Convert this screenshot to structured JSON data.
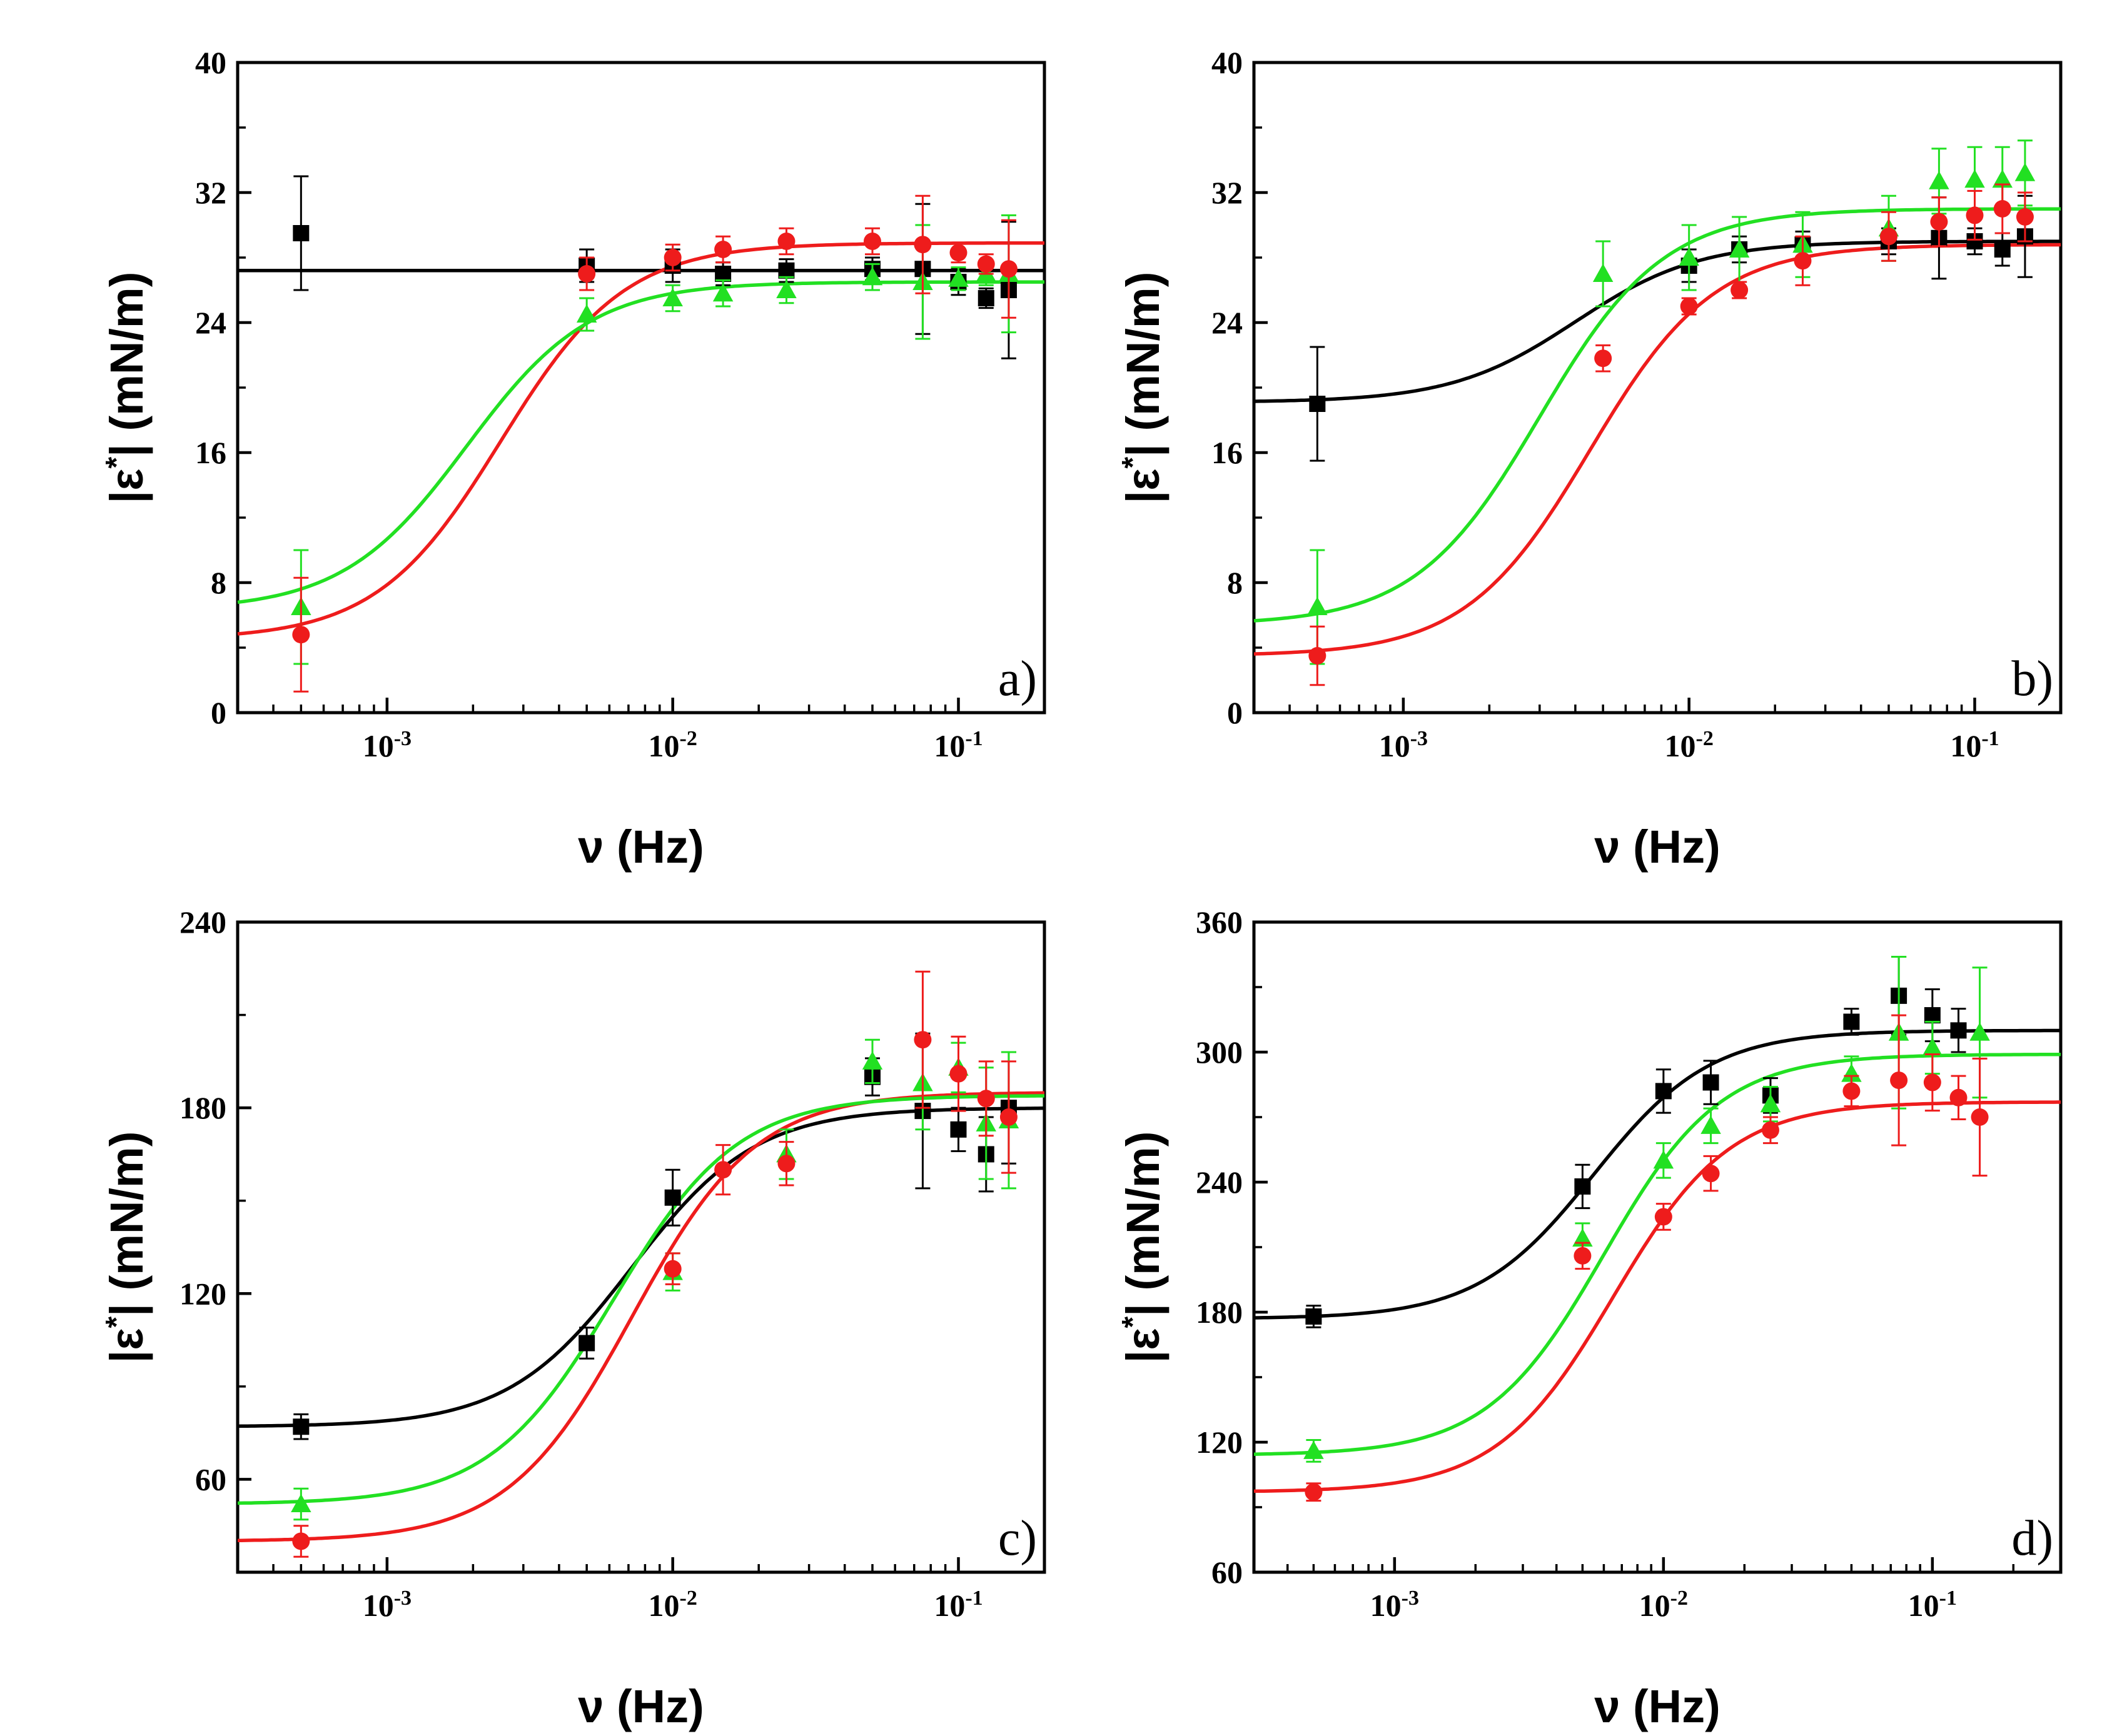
{
  "figure": {
    "xlabel": "ν (Hz)",
    "ylabel_main": "|ε",
    "ylabel_sup": "*",
    "ylabel_tail": "| (mN/m)"
  },
  "series_colors": {
    "black": "#000000",
    "red": "#ee1c1c",
    "green": "#22e022"
  },
  "chart_data": [
    {
      "type": "scatter",
      "panel": "a)",
      "xlabel": "ν (Hz)",
      "ylabel": "|ε*| (mN/m)",
      "xscale": "log",
      "xlim": [
        0.0003,
        0.2
      ],
      "ylim": [
        0,
        40
      ],
      "yticks": [
        0,
        8,
        16,
        24,
        32,
        40
      ],
      "xticks": [
        {
          "v": 0.001,
          "base": "10",
          "exp": "-3"
        },
        {
          "v": 0.01,
          "base": "10",
          "exp": "-2"
        },
        {
          "v": 0.1,
          "base": "10",
          "exp": "-1"
        }
      ],
      "series": [
        {
          "name": "black",
          "marker": "square",
          "x": [
            0.0005,
            0.005,
            0.01,
            0.015,
            0.025,
            0.05,
            0.075,
            0.1,
            0.125,
            0.15
          ],
          "y": [
            29.5,
            27.5,
            27.5,
            27,
            27.2,
            27.3,
            27.3,
            26.5,
            25.5,
            26
          ],
          "err": [
            3.5,
            1,
            1,
            0.7,
            0.7,
            0.7,
            4,
            0.8,
            0.6,
            4.2
          ],
          "fit": {
            "low": 27.2,
            "high": 27.2,
            "fc": 0.003
          }
        },
        {
          "name": "red",
          "marker": "circle",
          "x": [
            0.0005,
            0.005,
            0.01,
            0.015,
            0.025,
            0.05,
            0.075,
            0.1,
            0.125,
            0.15
          ],
          "y": [
            4.8,
            27,
            28,
            28.5,
            29,
            29,
            28.8,
            28.3,
            27.6,
            27.3
          ],
          "err": [
            3.5,
            1,
            0.8,
            0.8,
            0.8,
            0.8,
            3,
            0.6,
            0.6,
            3
          ],
          "fit": {
            "low": 4.5,
            "high": 28.9,
            "fc": 0.0025
          }
        },
        {
          "name": "green",
          "marker": "triangle",
          "x": [
            0.0005,
            0.005,
            0.01,
            0.015,
            0.025,
            0.05,
            0.075,
            0.1,
            0.125,
            0.15
          ],
          "y": [
            6.5,
            24.5,
            25.5,
            25.8,
            26,
            26.8,
            26.5,
            26.7,
            27,
            27
          ],
          "err": [
            3.5,
            1,
            0.8,
            0.8,
            0.8,
            0.8,
            3.5,
            0.7,
            0.7,
            3.6
          ],
          "fit": {
            "low": 6.3,
            "high": 26.5,
            "fc": 0.0019
          }
        }
      ]
    },
    {
      "type": "scatter",
      "panel": "b)",
      "xlabel": "ν (Hz)",
      "ylabel": "|ε*| (mN/m)",
      "xscale": "log",
      "xlim": [
        0.0003,
        0.2
      ],
      "ylim": [
        0,
        40
      ],
      "yticks": [
        0,
        8,
        16,
        24,
        32,
        40
      ],
      "xticks": [
        {
          "v": 0.001,
          "base": "10",
          "exp": "-3"
        },
        {
          "v": 0.01,
          "base": "10",
          "exp": "-2"
        },
        {
          "v": 0.1,
          "base": "10",
          "exp": "-1"
        }
      ],
      "series": [
        {
          "name": "black",
          "marker": "square",
          "x": [
            0.0005,
            0.01,
            0.015,
            0.025,
            0.05,
            0.075,
            0.1,
            0.125,
            0.15
          ],
          "y": [
            19,
            27.5,
            28.5,
            28.8,
            29,
            29.2,
            29,
            28.5,
            29.3
          ],
          "err": [
            3.5,
            1,
            0.8,
            0.8,
            0.8,
            2.5,
            0.8,
            1,
            2.5
          ],
          "fit": {
            "low": 19.1,
            "high": 29,
            "fc": 0.004
          }
        },
        {
          "name": "red",
          "marker": "circle",
          "x": [
            0.0005,
            0.005,
            0.01,
            0.015,
            0.025,
            0.05,
            0.075,
            0.1,
            0.125,
            0.15
          ],
          "y": [
            3.5,
            21.8,
            25,
            26,
            27.8,
            29.3,
            30.2,
            30.6,
            31,
            30.5
          ],
          "err": [
            1.8,
            0.8,
            0.5,
            0.5,
            1.5,
            1.5,
            1.5,
            1.5,
            1.5,
            1.5
          ],
          "fit": {
            "low": 3.5,
            "high": 28.8,
            "fc": 0.0045
          }
        },
        {
          "name": "green",
          "marker": "triangle",
          "x": [
            0.0005,
            0.005,
            0.01,
            0.015,
            0.025,
            0.05,
            0.075,
            0.1,
            0.125,
            0.15
          ],
          "y": [
            6.5,
            27,
            28,
            28.5,
            28.8,
            29.8,
            32.7,
            32.8,
            32.8,
            33.2
          ],
          "err": [
            3.5,
            2,
            2,
            2,
            2,
            2,
            2,
            2,
            2,
            2
          ],
          "fit": {
            "low": 5.4,
            "high": 31,
            "fc": 0.003
          }
        }
      ]
    },
    {
      "type": "scatter",
      "panel": "c)",
      "xlabel": "ν (Hz)",
      "ylabel": "|ε*| (mN/m)",
      "xscale": "log",
      "xlim": [
        0.0003,
        0.2
      ],
      "ylim": [
        30,
        240
      ],
      "yticks": [
        60,
        120,
        180,
        240
      ],
      "xticks": [
        {
          "v": 0.001,
          "base": "10",
          "exp": "-3"
        },
        {
          "v": 0.01,
          "base": "10",
          "exp": "-2"
        },
        {
          "v": 0.1,
          "base": "10",
          "exp": "-1"
        }
      ],
      "series": [
        {
          "name": "black",
          "marker": "square",
          "x": [
            0.0005,
            0.005,
            0.01,
            0.05,
            0.075,
            0.1,
            0.125,
            0.15
          ],
          "y": [
            77,
            104,
            151,
            190,
            179,
            173,
            165,
            180
          ],
          "err": [
            4,
            5,
            9,
            6,
            25,
            7,
            12,
            18
          ],
          "fit": {
            "low": 77,
            "high": 180,
            "fc": 0.0072
          }
        },
        {
          "name": "red",
          "marker": "circle",
          "x": [
            0.0005,
            0.01,
            0.015,
            0.025,
            0.075,
            0.1,
            0.125,
            0.15
          ],
          "y": [
            40,
            128,
            160,
            162,
            202,
            191,
            183,
            177
          ],
          "err": [
            5,
            5,
            8,
            7,
            22,
            12,
            12,
            18
          ],
          "fit": {
            "low": 40,
            "high": 185,
            "fc": 0.0072
          }
        },
        {
          "name": "green",
          "marker": "triangle",
          "x": [
            0.0005,
            0.01,
            0.025,
            0.05,
            0.075,
            0.1,
            0.125,
            0.15
          ],
          "y": [
            52,
            127,
            165,
            195,
            188,
            193,
            175,
            176
          ],
          "err": [
            5,
            6,
            8,
            7,
            15,
            8,
            18,
            22
          ],
          "fit": {
            "low": 52,
            "high": 184,
            "fc": 0.0062
          }
        }
      ]
    },
    {
      "type": "scatter",
      "panel": "d)",
      "xlabel": "ν (Hz)",
      "ylabel": "|ε*| (mN/m)",
      "xscale": "log",
      "xlim": [
        0.0003,
        0.3
      ],
      "ylim": [
        60,
        360
      ],
      "yticks": [
        60,
        120,
        180,
        240,
        300,
        360
      ],
      "xticks": [
        {
          "v": 0.001,
          "base": "10",
          "exp": "-3"
        },
        {
          "v": 0.01,
          "base": "10",
          "exp": "-2"
        },
        {
          "v": 0.1,
          "base": "10",
          "exp": "-1"
        }
      ],
      "series": [
        {
          "name": "black",
          "marker": "square",
          "x": [
            0.0005,
            0.005,
            0.01,
            0.015,
            0.025,
            0.05,
            0.075,
            0.1,
            0.125
          ],
          "y": [
            178,
            238,
            282,
            286,
            280,
            314,
            326,
            317,
            310
          ],
          "err": [
            5,
            10,
            10,
            10,
            8,
            6,
            18,
            12,
            10
          ],
          "fit": {
            "low": 177,
            "high": 310,
            "fc": 0.0055
          }
        },
        {
          "name": "red",
          "marker": "circle",
          "x": [
            0.0005,
            0.005,
            0.01,
            0.015,
            0.025,
            0.05,
            0.075,
            0.1,
            0.125,
            0.15
          ],
          "y": [
            97,
            206,
            224,
            244,
            264,
            282,
            287,
            286,
            279,
            270
          ],
          "err": [
            4,
            6,
            6,
            8,
            6,
            7,
            30,
            13,
            10,
            27
          ],
          "fit": {
            "low": 97,
            "high": 277,
            "fc": 0.0065
          }
        },
        {
          "name": "green",
          "marker": "triangle",
          "x": [
            0.0005,
            0.005,
            0.01,
            0.015,
            0.025,
            0.05,
            0.075,
            0.1,
            0.15
          ],
          "y": [
            116,
            214,
            250,
            266,
            276,
            290,
            309,
            302,
            309
          ],
          "err": [
            5,
            7,
            8,
            8,
            8,
            8,
            35,
            12,
            30
          ],
          "fit": {
            "low": 114,
            "high": 299,
            "fc": 0.006
          }
        }
      ]
    }
  ]
}
